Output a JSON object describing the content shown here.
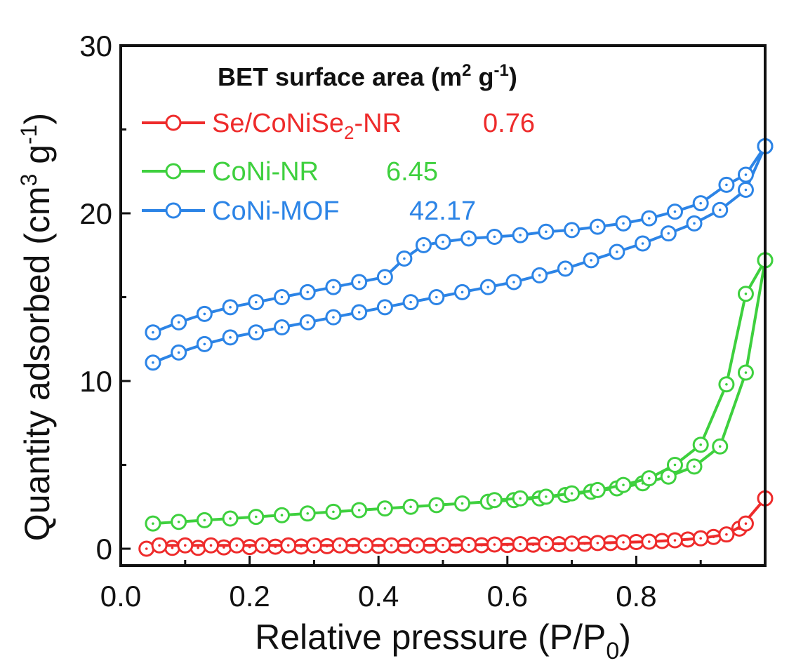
{
  "chart_data": {
    "type": "line",
    "xlabel": "Relative pressure (P/P",
    "xlabel_sub": "0",
    "xlabel_end": ")",
    "ylabel": "Quantity adsorbed (cm",
    "ylabel_sup1": "3",
    "ylabel_mid": " g",
    "ylabel_sup2": "-1",
    "ylabel_end": ")",
    "xlim": [
      0.0,
      1.0
    ],
    "ylim": [
      -1,
      30
    ],
    "x_ticks": [
      "0.0",
      "0.2",
      "0.4",
      "0.6",
      "0.8"
    ],
    "y_ticks": [
      "0",
      "10",
      "20",
      "30"
    ],
    "legend_title": "BET surface area (m",
    "legend_title_sup1": "2",
    "legend_title_mid": " g",
    "legend_title_sup2": "-1",
    "legend_title_end": ")",
    "legend_position": "top-left",
    "series": [
      {
        "name": "Se/CoNiSe2-NR",
        "name_pre": "Se/CoNiSe",
        "name_sub": "2",
        "name_post": "-NR",
        "value": "0.76",
        "color": "#ee2b2b",
        "adsorption": {
          "x": [
            0.04,
            0.08,
            0.12,
            0.16,
            0.2,
            0.24,
            0.28,
            0.32,
            0.36,
            0.4,
            0.44,
            0.48,
            0.52,
            0.56,
            0.6,
            0.64,
            0.68,
            0.72,
            0.76,
            0.8,
            0.84,
            0.88,
            0.92,
            0.96,
            1.0
          ],
          "y": [
            0.0,
            0.05,
            0.05,
            0.08,
            0.1,
            0.12,
            0.13,
            0.15,
            0.16,
            0.17,
            0.18,
            0.19,
            0.2,
            0.21,
            0.22,
            0.24,
            0.27,
            0.3,
            0.34,
            0.4,
            0.46,
            0.55,
            0.7,
            1.2,
            3.0
          ]
        },
        "desorption": {
          "x": [
            0.06,
            0.1,
            0.14,
            0.18,
            0.22,
            0.26,
            0.3,
            0.34,
            0.38,
            0.42,
            0.46,
            0.5,
            0.54,
            0.58,
            0.62,
            0.66,
            0.7,
            0.74,
            0.78,
            0.82,
            0.86,
            0.9,
            0.94,
            0.97
          ],
          "y": [
            0.2,
            0.2,
            0.2,
            0.2,
            0.2,
            0.2,
            0.2,
            0.2,
            0.2,
            0.2,
            0.2,
            0.22,
            0.23,
            0.25,
            0.27,
            0.29,
            0.31,
            0.34,
            0.38,
            0.42,
            0.5,
            0.62,
            0.85,
            1.5
          ]
        }
      },
      {
        "name": "CoNi-NR",
        "value": "6.45",
        "color": "#3ed03e",
        "adsorption": {
          "x": [
            0.05,
            0.09,
            0.13,
            0.17,
            0.21,
            0.25,
            0.29,
            0.33,
            0.37,
            0.41,
            0.45,
            0.49,
            0.53,
            0.57,
            0.61,
            0.65,
            0.69,
            0.73,
            0.77,
            0.81,
            0.85,
            0.89,
            0.93,
            0.97,
            1.0
          ],
          "y": [
            1.5,
            1.6,
            1.7,
            1.8,
            1.9,
            2.0,
            2.1,
            2.2,
            2.3,
            2.4,
            2.5,
            2.6,
            2.7,
            2.8,
            2.9,
            3.0,
            3.2,
            3.4,
            3.6,
            3.9,
            4.3,
            4.9,
            6.1,
            10.5,
            17.2
          ]
        },
        "desorption": {
          "x": [
            0.58,
            0.62,
            0.66,
            0.7,
            0.74,
            0.78,
            0.82,
            0.86,
            0.9,
            0.94,
            0.97,
            1.0
          ],
          "y": [
            2.9,
            3.0,
            3.1,
            3.3,
            3.5,
            3.8,
            4.2,
            5.0,
            6.2,
            9.8,
            15.2,
            17.2
          ]
        }
      },
      {
        "name": "CoNi-MOF",
        "value": "42.17",
        "color": "#2c84e6",
        "adsorption": {
          "x": [
            0.05,
            0.09,
            0.13,
            0.17,
            0.21,
            0.25,
            0.29,
            0.33,
            0.37,
            0.41,
            0.45,
            0.49,
            0.53,
            0.57,
            0.61,
            0.65,
            0.69,
            0.73,
            0.77,
            0.81,
            0.85,
            0.89,
            0.93,
            0.97,
            1.0
          ],
          "y": [
            11.1,
            11.7,
            12.2,
            12.6,
            12.9,
            13.2,
            13.5,
            13.8,
            14.1,
            14.4,
            14.7,
            15.0,
            15.3,
            15.6,
            15.9,
            16.3,
            16.7,
            17.2,
            17.7,
            18.2,
            18.8,
            19.4,
            20.2,
            21.4,
            24.0
          ]
        },
        "desorption": {
          "x": [
            0.05,
            0.09,
            0.13,
            0.17,
            0.21,
            0.25,
            0.29,
            0.33,
            0.37,
            0.41,
            0.44,
            0.47,
            0.5,
            0.54,
            0.58,
            0.62,
            0.66,
            0.7,
            0.74,
            0.78,
            0.82,
            0.86,
            0.9,
            0.94,
            0.97,
            1.0
          ],
          "y": [
            12.9,
            13.5,
            14.0,
            14.4,
            14.7,
            15.0,
            15.3,
            15.6,
            15.9,
            16.2,
            17.3,
            18.1,
            18.3,
            18.5,
            18.6,
            18.7,
            18.9,
            19.0,
            19.2,
            19.4,
            19.7,
            20.1,
            20.6,
            21.7,
            22.3,
            24.0
          ]
        }
      }
    ]
  }
}
